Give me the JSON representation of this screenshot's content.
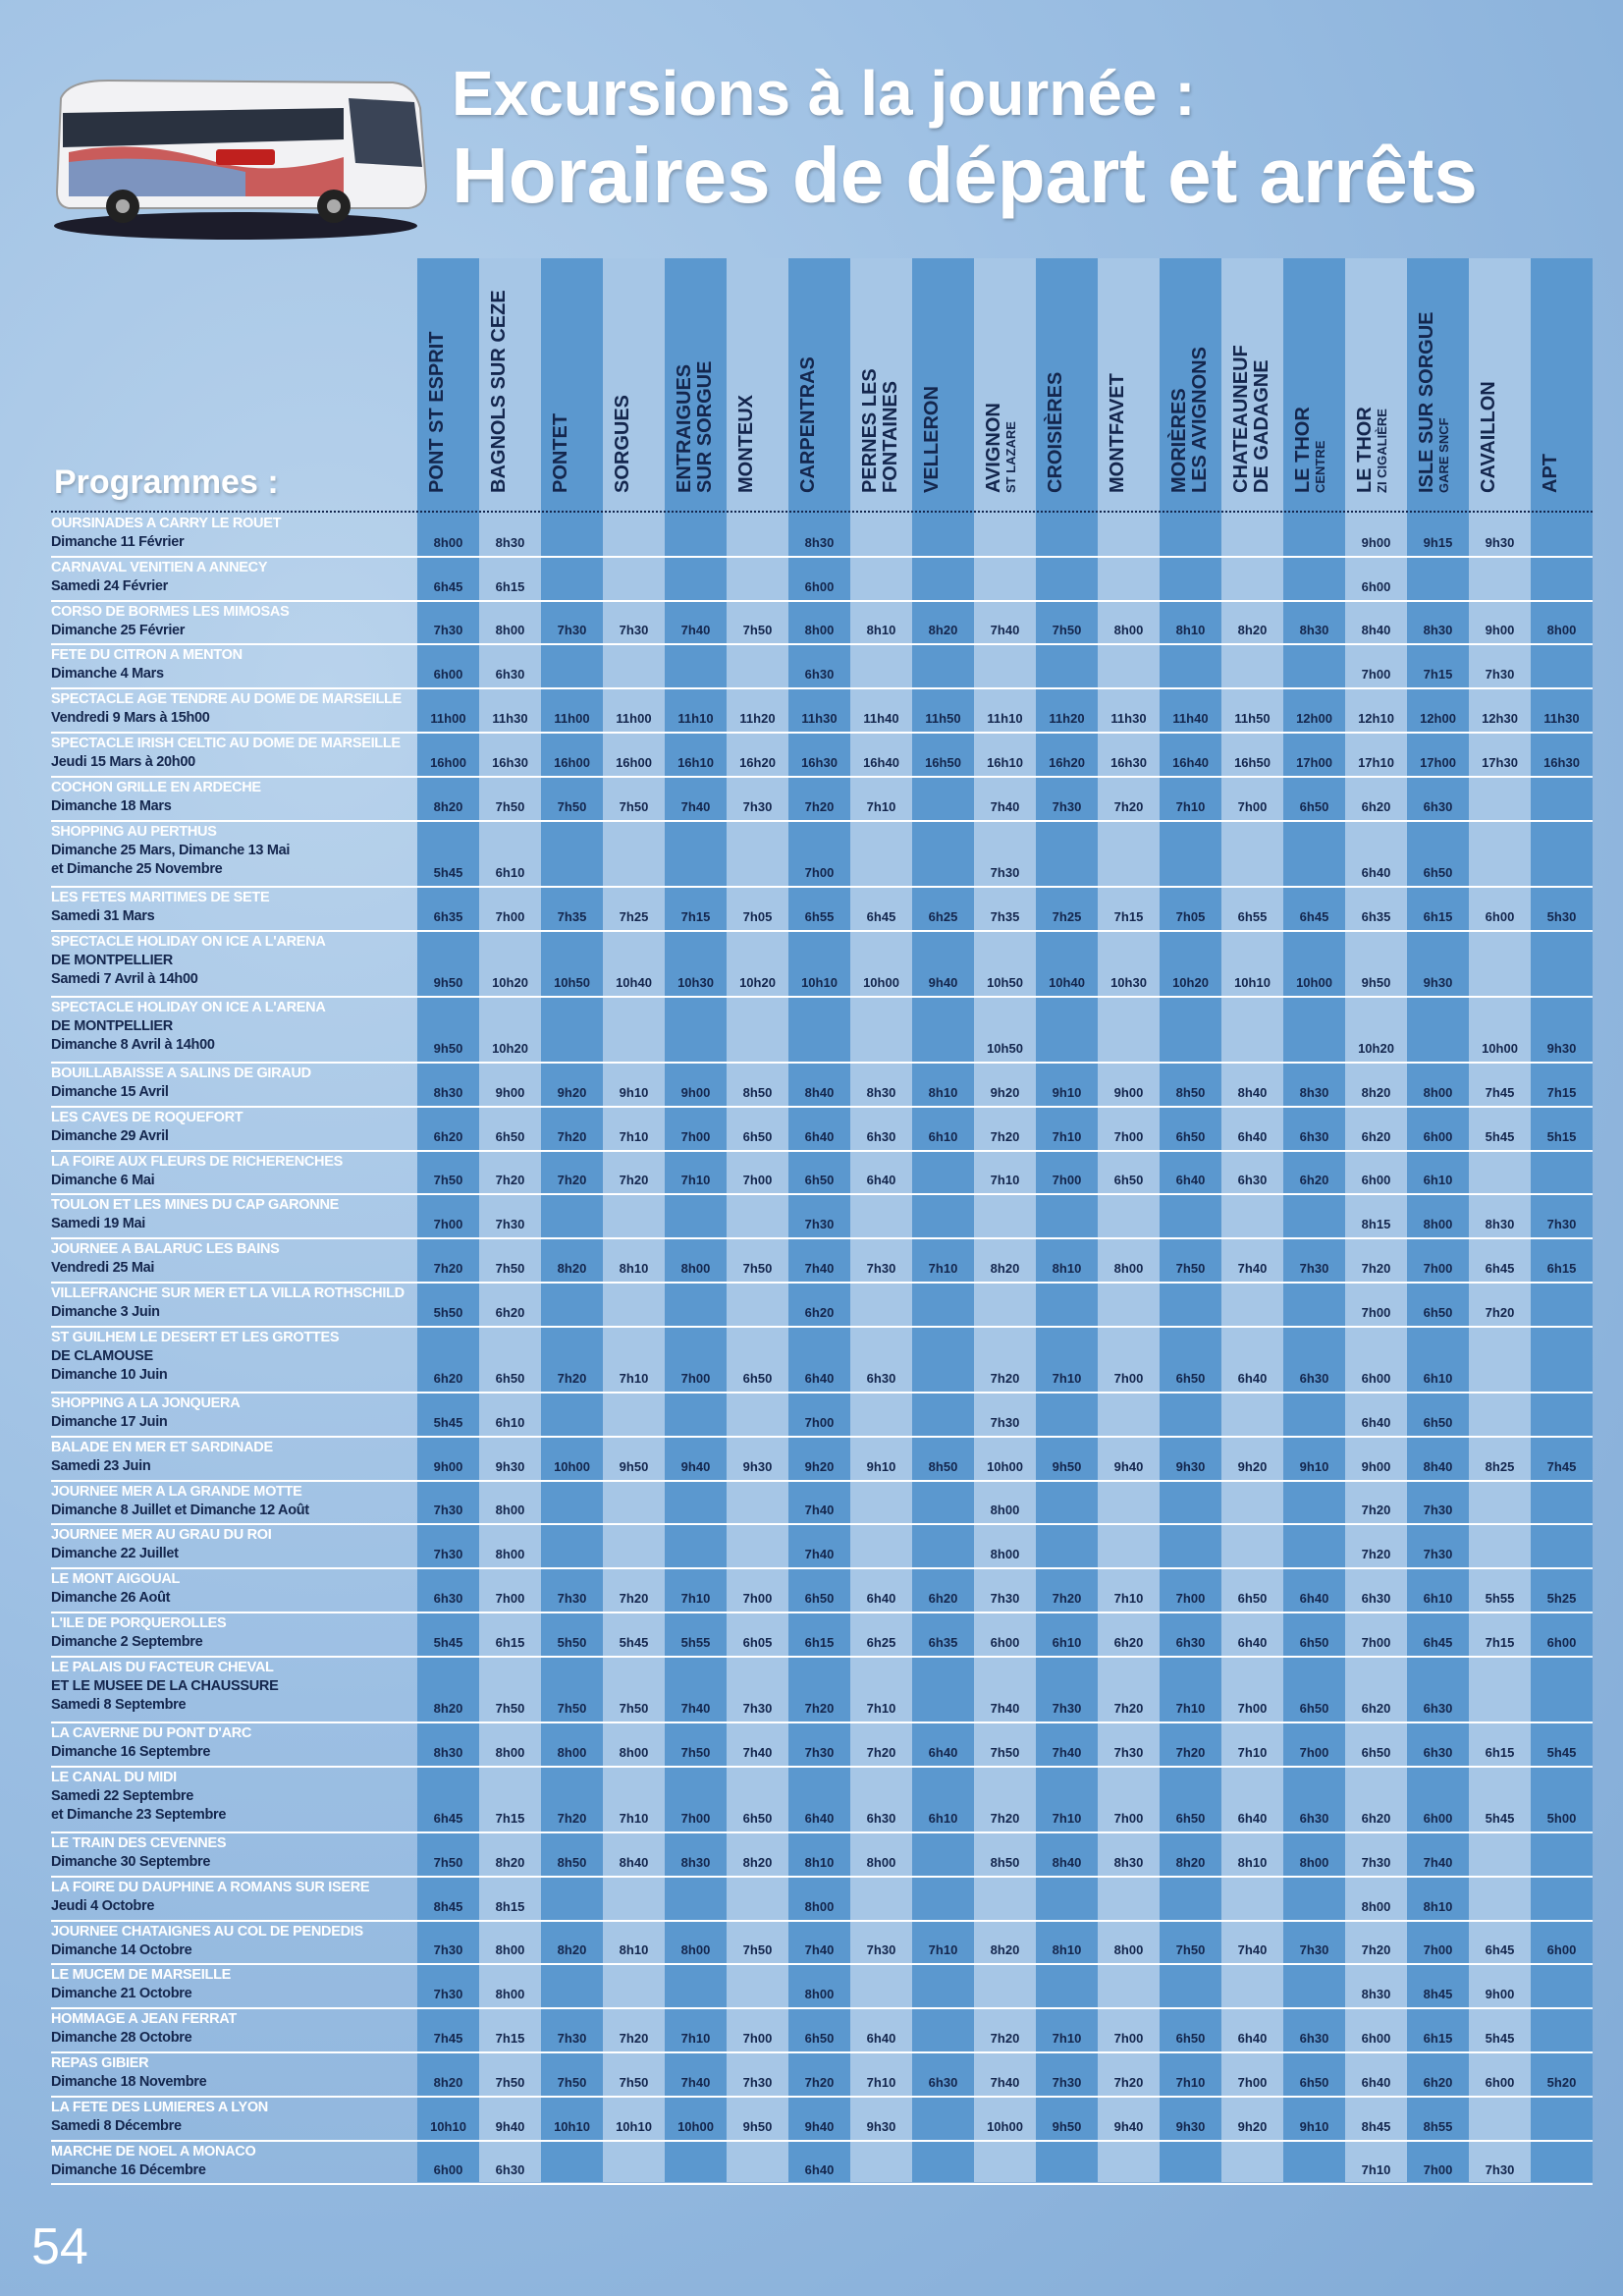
{
  "header": {
    "title_line1": "Excursions à la journée :",
    "title_line2": "Horaires de départ et arrêts"
  },
  "programmes_label": "Programmes :",
  "columns": [
    {
      "lines": [
        "PONT ST ESPRIT"
      ]
    },
    {
      "lines": [
        "BAGNOLS SUR CEZE"
      ]
    },
    {
      "lines": [
        "PONTET"
      ]
    },
    {
      "lines": [
        "SORGUES"
      ]
    },
    {
      "lines": [
        "ENTRAIGUES",
        "SUR SORGUE"
      ]
    },
    {
      "lines": [
        "MONTEUX"
      ]
    },
    {
      "lines": [
        "CARPENTRAS"
      ]
    },
    {
      "lines": [
        "PERNES LES",
        "FONTAINES"
      ]
    },
    {
      "lines": [
        "VELLERON"
      ]
    },
    {
      "lines": [
        "AVIGNON"
      ],
      "sub": "ST LAZARE"
    },
    {
      "lines": [
        "CROISIÈRES"
      ]
    },
    {
      "lines": [
        "MONTFAVET"
      ]
    },
    {
      "lines": [
        "MORIÈRES",
        "LES AVIGNONS"
      ]
    },
    {
      "lines": [
        "CHATEAUNEUF",
        "DE GADAGNE"
      ]
    },
    {
      "lines": [
        "LE THOR"
      ],
      "sub": "CENTRE"
    },
    {
      "lines": [
        "LE THOR"
      ],
      "sub": "ZI CIGALIÈRE"
    },
    {
      "lines": [
        "ISLE SUR SORGUE"
      ],
      "sub": "GARE SNCF"
    },
    {
      "lines": [
        "CAVAILLON"
      ]
    },
    {
      "lines": [
        "APT"
      ]
    }
  ],
  "rows": [
    {
      "program": [
        "OURSINADES A CARRY LE ROUET",
        "Dimanche 11 Février"
      ],
      "times": [
        "8h00",
        "8h30",
        null,
        null,
        null,
        null,
        "8h30",
        null,
        null,
        null,
        null,
        null,
        null,
        null,
        null,
        "9h00",
        "9h15",
        "9h30",
        null
      ]
    },
    {
      "program": [
        "CARNAVAL VENITIEN A ANNECY",
        "Samedi 24 Février"
      ],
      "times": [
        "6h45",
        "6h15",
        null,
        null,
        null,
        null,
        "6h00",
        null,
        null,
        null,
        null,
        null,
        null,
        null,
        null,
        "6h00",
        null,
        null,
        null
      ]
    },
    {
      "program": [
        "CORSO DE BORMES LES MIMOSAS",
        "Dimanche 25 Février"
      ],
      "times": [
        "7h30",
        "8h00",
        "7h30",
        "7h30",
        "7h40",
        "7h50",
        "8h00",
        "8h10",
        "8h20",
        "7h40",
        "7h50",
        "8h00",
        "8h10",
        "8h20",
        "8h30",
        "8h40",
        "8h30",
        "9h00",
        "8h00"
      ]
    },
    {
      "program": [
        "FETE DU CITRON A MENTON",
        "Dimanche 4 Mars"
      ],
      "times": [
        "6h00",
        "6h30",
        null,
        null,
        null,
        null,
        "6h30",
        null,
        null,
        null,
        null,
        null,
        null,
        null,
        null,
        "7h00",
        "7h15",
        "7h30",
        null
      ]
    },
    {
      "program": [
        "SPECTACLE AGE TENDRE AU DOME DE MARSEILLE",
        "Vendredi 9 Mars à 15h00"
      ],
      "times": [
        "11h00",
        "11h30",
        "11h00",
        "11h00",
        "11h10",
        "11h20",
        "11h30",
        "11h40",
        "11h50",
        "11h10",
        "11h20",
        "11h30",
        "11h40",
        "11h50",
        "12h00",
        "12h10",
        "12h00",
        "12h30",
        "11h30"
      ]
    },
    {
      "program": [
        "SPECTACLE IRISH CELTIC AU DOME DE MARSEILLE",
        "Jeudi 15 Mars à 20h00"
      ],
      "times": [
        "16h00",
        "16h30",
        "16h00",
        "16h00",
        "16h10",
        "16h20",
        "16h30",
        "16h40",
        "16h50",
        "16h10",
        "16h20",
        "16h30",
        "16h40",
        "16h50",
        "17h00",
        "17h10",
        "17h00",
        "17h30",
        "16h30"
      ]
    },
    {
      "program": [
        "COCHON GRILLE EN ARDECHE",
        "Dimanche 18 Mars"
      ],
      "times": [
        "8h20",
        "7h50",
        "7h50",
        "7h50",
        "7h40",
        "7h30",
        "7h20",
        "7h10",
        null,
        "7h40",
        "7h30",
        "7h20",
        "7h10",
        "7h00",
        "6h50",
        "6h20",
        "6h30",
        null,
        null
      ]
    },
    {
      "program": [
        "SHOPPING AU PERTHUS",
        "Dimanche 25 Mars, Dimanche 13 Mai",
        "et Dimanche 25 Novembre"
      ],
      "times": [
        "5h45",
        "6h10",
        null,
        null,
        null,
        null,
        "7h00",
        null,
        null,
        "7h30",
        null,
        null,
        null,
        null,
        null,
        "6h40",
        "6h50",
        null,
        null
      ]
    },
    {
      "program": [
        "LES FETES MARITIMES DE SETE",
        "Samedi 31 Mars"
      ],
      "times": [
        "6h35",
        "7h00",
        "7h35",
        "7h25",
        "7h15",
        "7h05",
        "6h55",
        "6h45",
        "6h25",
        "7h35",
        "7h25",
        "7h15",
        "7h05",
        "6h55",
        "6h45",
        "6h35",
        "6h15",
        "6h00",
        "5h30"
      ]
    },
    {
      "program": [
        "SPECTACLE HOLIDAY ON ICE A L'ARENA",
        "DE MONTPELLIER",
        "Samedi 7 Avril à 14h00"
      ],
      "times": [
        "9h50",
        "10h20",
        "10h50",
        "10h40",
        "10h30",
        "10h20",
        "10h10",
        "10h00",
        "9h40",
        "10h50",
        "10h40",
        "10h30",
        "10h20",
        "10h10",
        "10h00",
        "9h50",
        "9h30",
        null,
        null
      ]
    },
    {
      "program": [
        "SPECTACLE HOLIDAY ON ICE A L'ARENA",
        "DE MONTPELLIER",
        "Dimanche 8 Avril à 14h00"
      ],
      "times": [
        "9h50",
        "10h20",
        null,
        null,
        null,
        null,
        null,
        null,
        null,
        "10h50",
        null,
        null,
        null,
        null,
        null,
        "10h20",
        null,
        "10h00",
        "9h30"
      ]
    },
    {
      "program": [
        "BOUILLABAISSE A SALINS DE GIRAUD",
        "Dimanche 15 Avril"
      ],
      "times": [
        "8h30",
        "9h00",
        "9h20",
        "9h10",
        "9h00",
        "8h50",
        "8h40",
        "8h30",
        "8h10",
        "9h20",
        "9h10",
        "9h00",
        "8h50",
        "8h40",
        "8h30",
        "8h20",
        "8h00",
        "7h45",
        "7h15"
      ]
    },
    {
      "program": [
        "LES CAVES DE ROQUEFORT",
        "Dimanche 29 Avril"
      ],
      "times": [
        "6h20",
        "6h50",
        "7h20",
        "7h10",
        "7h00",
        "6h50",
        "6h40",
        "6h30",
        "6h10",
        "7h20",
        "7h10",
        "7h00",
        "6h50",
        "6h40",
        "6h30",
        "6h20",
        "6h00",
        "5h45",
        "5h15"
      ]
    },
    {
      "program": [
        "LA FOIRE AUX FLEURS DE RICHERENCHES",
        "Dimanche 6 Mai"
      ],
      "times": [
        "7h50",
        "7h20",
        "7h20",
        "7h20",
        "7h10",
        "7h00",
        "6h50",
        "6h40",
        null,
        "7h10",
        "7h00",
        "6h50",
        "6h40",
        "6h30",
        "6h20",
        "6h00",
        "6h10",
        null,
        null
      ]
    },
    {
      "program": [
        "TOULON ET LES MINES DU CAP GARONNE",
        "Samedi 19 Mai"
      ],
      "times": [
        "7h00",
        "7h30",
        null,
        null,
        null,
        null,
        "7h30",
        null,
        null,
        null,
        null,
        null,
        null,
        null,
        null,
        "8h15",
        "8h00",
        "8h30",
        "7h30"
      ]
    },
    {
      "program": [
        "JOURNEE A BALARUC LES BAINS",
        "Vendredi 25 Mai"
      ],
      "times": [
        "7h20",
        "7h50",
        "8h20",
        "8h10",
        "8h00",
        "7h50",
        "7h40",
        "7h30",
        "7h10",
        "8h20",
        "8h10",
        "8h00",
        "7h50",
        "7h40",
        "7h30",
        "7h20",
        "7h00",
        "6h45",
        "6h15"
      ]
    },
    {
      "program": [
        "VILLEFRANCHE SUR MER ET LA VILLA ROTHSCHILD",
        "Dimanche 3 Juin"
      ],
      "times": [
        "5h50",
        "6h20",
        null,
        null,
        null,
        null,
        "6h20",
        null,
        null,
        null,
        null,
        null,
        null,
        null,
        null,
        "7h00",
        "6h50",
        "7h20",
        null
      ]
    },
    {
      "program": [
        "ST GUILHEM LE DESERT ET LES GROTTES",
        "DE CLAMOUSE",
        "Dimanche 10 Juin"
      ],
      "times": [
        "6h20",
        "6h50",
        "7h20",
        "7h10",
        "7h00",
        "6h50",
        "6h40",
        "6h30",
        null,
        "7h20",
        "7h10",
        "7h00",
        "6h50",
        "6h40",
        "6h30",
        "6h00",
        "6h10",
        null,
        null
      ]
    },
    {
      "program": [
        "SHOPPING A LA JONQUERA",
        "Dimanche 17 Juin"
      ],
      "times": [
        "5h45",
        "6h10",
        null,
        null,
        null,
        null,
        "7h00",
        null,
        null,
        "7h30",
        null,
        null,
        null,
        null,
        null,
        "6h40",
        "6h50",
        null,
        null
      ]
    },
    {
      "program": [
        "BALADE EN MER ET SARDINADE",
        "Samedi 23 Juin"
      ],
      "times": [
        "9h00",
        "9h30",
        "10h00",
        "9h50",
        "9h40",
        "9h30",
        "9h20",
        "9h10",
        "8h50",
        "10h00",
        "9h50",
        "9h40",
        "9h30",
        "9h20",
        "9h10",
        "9h00",
        "8h40",
        "8h25",
        "7h45"
      ]
    },
    {
      "program": [
        "JOURNEE MER A LA GRANDE MOTTE",
        "Dimanche 8 Juillet et Dimanche 12 Août"
      ],
      "times": [
        "7h30",
        "8h00",
        null,
        null,
        null,
        null,
        "7h40",
        null,
        null,
        "8h00",
        null,
        null,
        null,
        null,
        null,
        "7h20",
        "7h30",
        null,
        null
      ]
    },
    {
      "program": [
        "JOURNEE MER AU GRAU DU ROI",
        "Dimanche 22 Juillet"
      ],
      "times": [
        "7h30",
        "8h00",
        null,
        null,
        null,
        null,
        "7h40",
        null,
        null,
        "8h00",
        null,
        null,
        null,
        null,
        null,
        "7h20",
        "7h30",
        null,
        null
      ]
    },
    {
      "program": [
        "LE MONT AIGOUAL",
        "Dimanche 26 Août"
      ],
      "times": [
        "6h30",
        "7h00",
        "7h30",
        "7h20",
        "7h10",
        "7h00",
        "6h50",
        "6h40",
        "6h20",
        "7h30",
        "7h20",
        "7h10",
        "7h00",
        "6h50",
        "6h40",
        "6h30",
        "6h10",
        "5h55",
        "5h25"
      ]
    },
    {
      "program": [
        "L'ILE DE PORQUEROLLES",
        "Dimanche 2 Septembre"
      ],
      "times": [
        "5h45",
        "6h15",
        "5h50",
        "5h45",
        "5h55",
        "6h05",
        "6h15",
        "6h25",
        "6h35",
        "6h00",
        "6h10",
        "6h20",
        "6h30",
        "6h40",
        "6h50",
        "7h00",
        "6h45",
        "7h15",
        "6h00"
      ]
    },
    {
      "program": [
        "LE PALAIS DU FACTEUR CHEVAL",
        "ET LE MUSEE DE LA CHAUSSURE",
        "Samedi 8 Septembre"
      ],
      "times": [
        "8h20",
        "7h50",
        "7h50",
        "7h50",
        "7h40",
        "7h30",
        "7h20",
        "7h10",
        null,
        "7h40",
        "7h30",
        "7h20",
        "7h10",
        "7h00",
        "6h50",
        "6h20",
        "6h30",
        null,
        null
      ]
    },
    {
      "program": [
        "LA CAVERNE DU PONT D'ARC",
        "Dimanche 16 Septembre"
      ],
      "times": [
        "8h30",
        "8h00",
        "8h00",
        "8h00",
        "7h50",
        "7h40",
        "7h30",
        "7h20",
        "6h40",
        "7h50",
        "7h40",
        "7h30",
        "7h20",
        "7h10",
        "7h00",
        "6h50",
        "6h30",
        "6h15",
        "5h45"
      ]
    },
    {
      "program": [
        "LE CANAL DU MIDI",
        "Samedi 22 Septembre",
        "et Dimanche 23 Septembre"
      ],
      "times": [
        "6h45",
        "7h15",
        "7h20",
        "7h10",
        "7h00",
        "6h50",
        "6h40",
        "6h30",
        "6h10",
        "7h20",
        "7h10",
        "7h00",
        "6h50",
        "6h40",
        "6h30",
        "6h20",
        "6h00",
        "5h45",
        "5h00"
      ]
    },
    {
      "program": [
        "LE TRAIN DES CEVENNES",
        "Dimanche 30 Septembre"
      ],
      "times": [
        "7h50",
        "8h20",
        "8h50",
        "8h40",
        "8h30",
        "8h20",
        "8h10",
        "8h00",
        null,
        "8h50",
        "8h40",
        "8h30",
        "8h20",
        "8h10",
        "8h00",
        "7h30",
        "7h40",
        null,
        null
      ]
    },
    {
      "program": [
        "LA FOIRE DU DAUPHINE A ROMANS SUR ISERE",
        "Jeudi 4 Octobre"
      ],
      "times": [
        "8h45",
        "8h15",
        null,
        null,
        null,
        null,
        "8h00",
        null,
        null,
        null,
        null,
        null,
        null,
        null,
        null,
        "8h00",
        "8h10",
        null,
        null
      ]
    },
    {
      "program": [
        "JOURNEE CHATAIGNES AU COL DE PENDEDIS",
        "Dimanche 14 Octobre"
      ],
      "times": [
        "7h30",
        "8h00",
        "8h20",
        "8h10",
        "8h00",
        "7h50",
        "7h40",
        "7h30",
        "7h10",
        "8h20",
        "8h10",
        "8h00",
        "7h50",
        "7h40",
        "7h30",
        "7h20",
        "7h00",
        "6h45",
        "6h00"
      ]
    },
    {
      "program": [
        "LE MUCEM DE MARSEILLE",
        "Dimanche 21 Octobre"
      ],
      "times": [
        "7h30",
        "8h00",
        null,
        null,
        null,
        null,
        "8h00",
        null,
        null,
        null,
        null,
        null,
        null,
        null,
        null,
        "8h30",
        "8h45",
        "9h00",
        null
      ]
    },
    {
      "program": [
        "HOMMAGE A JEAN FERRAT",
        "Dimanche 28 Octobre"
      ],
      "times": [
        "7h45",
        "7h15",
        "7h30",
        "7h20",
        "7h10",
        "7h00",
        "6h50",
        "6h40",
        null,
        "7h20",
        "7h10",
        "7h00",
        "6h50",
        "6h40",
        "6h30",
        "6h00",
        "6h15",
        "5h45",
        null
      ]
    },
    {
      "program": [
        "REPAS GIBIER",
        "Dimanche 18 Novembre"
      ],
      "times": [
        "8h20",
        "7h50",
        "7h50",
        "7h50",
        "7h40",
        "7h30",
        "7h20",
        "7h10",
        "6h30",
        "7h40",
        "7h30",
        "7h20",
        "7h10",
        "7h00",
        "6h50",
        "6h40",
        "6h20",
        "6h00",
        "5h20"
      ]
    },
    {
      "program": [
        "LA FETE DES LUMIERES A LYON",
        "Samedi 8 Décembre"
      ],
      "times": [
        "10h10",
        "9h40",
        "10h10",
        "10h10",
        "10h00",
        "9h50",
        "9h40",
        "9h30",
        null,
        "10h00",
        "9h50",
        "9h40",
        "9h30",
        "9h20",
        "9h10",
        "8h45",
        "8h55",
        null,
        null
      ]
    },
    {
      "program": [
        "MARCHE DE NOEL A MONACO",
        "Dimanche 16 Décembre"
      ],
      "times": [
        "6h00",
        "6h30",
        null,
        null,
        null,
        null,
        "6h40",
        null,
        null,
        null,
        null,
        null,
        null,
        null,
        null,
        "7h10",
        "7h00",
        "7h30",
        null
      ]
    }
  ],
  "page_number": "54"
}
